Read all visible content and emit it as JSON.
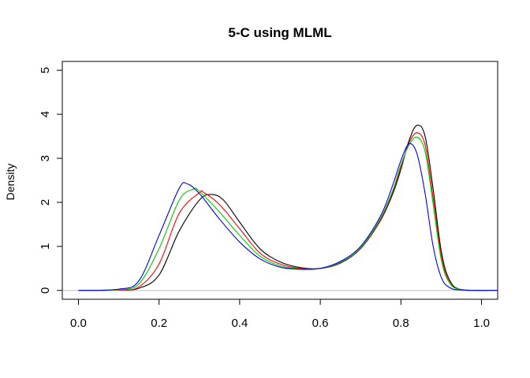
{
  "chart_data": {
    "type": "line",
    "title": "5-C using MLML",
    "xlabel": "",
    "ylabel": "Density",
    "xlim": [
      -0.04,
      1.04
    ],
    "ylim": [
      -0.2,
      5.2
    ],
    "xticks": [
      0.0,
      0.2,
      0.4,
      0.6,
      0.8,
      1.0
    ],
    "xtick_labels": [
      "0.0",
      "0.2",
      "0.4",
      "0.6",
      "0.8",
      "1.0"
    ],
    "yticks": [
      0,
      1,
      2,
      3,
      4,
      5
    ],
    "ytick_labels": [
      "0",
      "1",
      "2",
      "3",
      "4",
      "5"
    ],
    "baseline": {
      "y": 0,
      "color": "#bebebe"
    },
    "series": [
      {
        "name": "black",
        "color": "#000000",
        "x": [
          0.0,
          0.1,
          0.15,
          0.2,
          0.25,
          0.3,
          0.33,
          0.36,
          0.4,
          0.45,
          0.5,
          0.55,
          0.6,
          0.65,
          0.7,
          0.75,
          0.78,
          0.8,
          0.82,
          0.84,
          0.86,
          0.88,
          0.9,
          0.92,
          0.95,
          1.04
        ],
        "y": [
          0,
          0.01,
          0.05,
          0.35,
          1.35,
          2.05,
          2.18,
          2.05,
          1.55,
          0.95,
          0.65,
          0.52,
          0.5,
          0.62,
          0.95,
          1.6,
          2.2,
          2.75,
          3.4,
          3.75,
          3.5,
          2.3,
          0.9,
          0.25,
          0.02,
          0
        ]
      },
      {
        "name": "red",
        "color": "#ff0000",
        "x": [
          0.0,
          0.1,
          0.15,
          0.2,
          0.25,
          0.3,
          0.31,
          0.35,
          0.4,
          0.45,
          0.5,
          0.55,
          0.6,
          0.65,
          0.7,
          0.75,
          0.78,
          0.8,
          0.82,
          0.84,
          0.86,
          0.88,
          0.9,
          0.92,
          0.95,
          1.04
        ],
        "y": [
          0,
          0.01,
          0.08,
          0.6,
          1.75,
          2.22,
          2.23,
          1.95,
          1.4,
          0.85,
          0.6,
          0.5,
          0.5,
          0.63,
          0.96,
          1.62,
          2.25,
          2.8,
          3.35,
          3.58,
          3.3,
          2.1,
          0.8,
          0.2,
          0.02,
          0
        ]
      },
      {
        "name": "green",
        "color": "#00cd00",
        "x": [
          0.0,
          0.1,
          0.15,
          0.2,
          0.25,
          0.285,
          0.3,
          0.35,
          0.4,
          0.45,
          0.5,
          0.55,
          0.6,
          0.65,
          0.7,
          0.75,
          0.78,
          0.8,
          0.82,
          0.84,
          0.86,
          0.88,
          0.9,
          0.92,
          0.95,
          1.04
        ],
        "y": [
          0,
          0.02,
          0.15,
          0.95,
          2.05,
          2.3,
          2.25,
          1.78,
          1.25,
          0.78,
          0.56,
          0.49,
          0.5,
          0.64,
          0.97,
          1.65,
          2.28,
          2.85,
          3.3,
          3.48,
          3.15,
          1.95,
          0.7,
          0.18,
          0.02,
          0
        ]
      },
      {
        "name": "blue",
        "color": "#0000ff",
        "x": [
          0.0,
          0.1,
          0.15,
          0.2,
          0.25,
          0.27,
          0.3,
          0.35,
          0.4,
          0.45,
          0.5,
          0.55,
          0.6,
          0.65,
          0.7,
          0.75,
          0.78,
          0.8,
          0.82,
          0.84,
          0.86,
          0.88,
          0.9,
          0.92,
          0.95,
          1.04
        ],
        "y": [
          0,
          0.03,
          0.22,
          1.25,
          2.32,
          2.42,
          2.2,
          1.62,
          1.1,
          0.72,
          0.53,
          0.48,
          0.5,
          0.66,
          1.0,
          1.7,
          2.4,
          2.95,
          3.33,
          3.1,
          2.2,
          1.0,
          0.3,
          0.07,
          0.01,
          0
        ]
      }
    ]
  }
}
